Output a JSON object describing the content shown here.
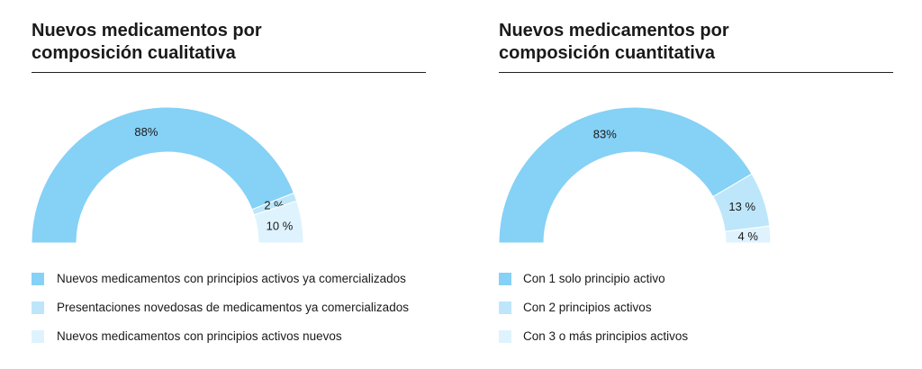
{
  "chart_data": [
    {
      "type": "pie",
      "title": [
        "Nuevos medicamentos por",
        "composición cualitativa"
      ],
      "slices": [
        {
          "label": "Nuevos medicamentos con principios activos ya comercializados",
          "value": 88,
          "value_label": "88%",
          "color": "#86d1f6"
        },
        {
          "label": "Presentaciones novedosas de medicamentos ya comercializados",
          "value": 2,
          "value_label": "2 %",
          "color": "#bde6fa"
        },
        {
          "label": "Nuevos medicamentos con principios activos nuevos",
          "value": 10,
          "value_label": "10 %",
          "color": "#def3fd"
        }
      ]
    },
    {
      "type": "pie",
      "title": [
        "Nuevos medicamentos por",
        "composición cuantitativa"
      ],
      "slices": [
        {
          "label": "Con 1 solo principio activo",
          "value": 83,
          "value_label": "83%",
          "color": "#86d1f6"
        },
        {
          "label": "Con 2 principios activos",
          "value": 13,
          "value_label": "13 %",
          "color": "#bde6fa"
        },
        {
          "label": "Con 3 o más principios activos",
          "value": 4,
          "value_label": "4 %",
          "color": "#def3fd"
        }
      ]
    }
  ]
}
